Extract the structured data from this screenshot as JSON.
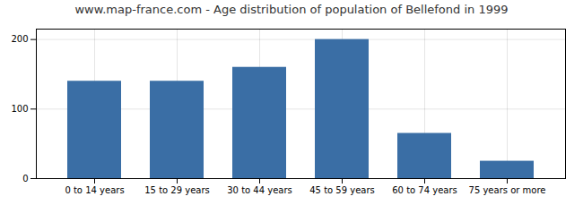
{
  "chart_data": {
    "type": "bar",
    "title": "www.map-france.com - Age distribution of population of Bellefond in 1999",
    "categories": [
      "0 to 14 years",
      "15 to 29 years",
      "30 to 44 years",
      "45 to 59 years",
      "60 to 74 years",
      "75 years or more"
    ],
    "values": [
      140,
      140,
      160,
      200,
      65,
      25
    ],
    "color": "#3a6ea5",
    "ylim": [
      0,
      215
    ],
    "yticks": [
      0,
      100,
      200
    ],
    "grid": true
  }
}
